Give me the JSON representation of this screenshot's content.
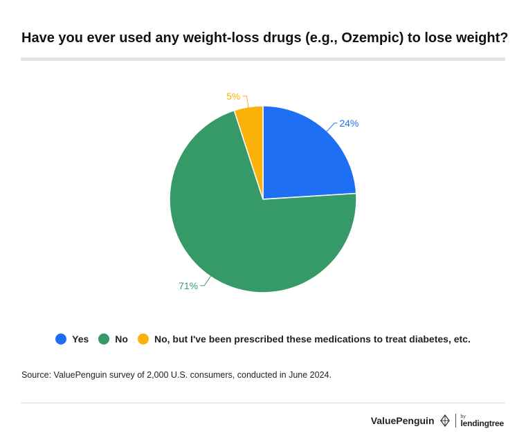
{
  "chart_data": {
    "type": "pie",
    "title": "Have you ever used any weight-loss drugs (e.g., Ozempic) to lose weight?",
    "slices": [
      {
        "label": "Yes",
        "value": 24,
        "display": "24%",
        "color": "#1f6ff5"
      },
      {
        "label": "No",
        "value": 71,
        "display": "71%",
        "color": "#359a68"
      },
      {
        "label": "No, but I've been prescribed these medications to treat diabetes, etc.",
        "value": 5,
        "display": "5%",
        "color": "#fbb208"
      }
    ],
    "legend_position": "bottom",
    "start_angle": "12 o'clock",
    "direction": "clockwise"
  },
  "source": "Source: ValuePenguin survey of 2,000 U.S. consumers, conducted in June 2024.",
  "branding": {
    "primary": "ValuePenguin",
    "by": "by",
    "partner": "lendingtree"
  }
}
